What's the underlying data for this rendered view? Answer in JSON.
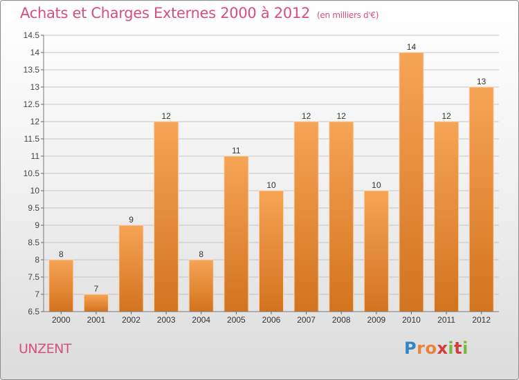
{
  "title": "Achats et Charges Externes 2000 à 2012",
  "unit": "(en milliers d'€)",
  "commune": "UNZENT",
  "logo": {
    "letters": [
      "P",
      "r",
      "o",
      "x",
      "i",
      "t",
      "i"
    ],
    "colors": [
      "#2e86c8",
      "#e8833a",
      "#e8833a",
      "#d63b3b",
      "#78b842",
      "#d63b3b",
      "#78b842"
    ]
  },
  "colors": {
    "bar_top": "#f6a456",
    "bar_bottom": "#d2731f",
    "grid": "#b5b5b5",
    "title": "#d84f7a"
  },
  "chart_data": {
    "type": "bar",
    "categories": [
      "2000",
      "2001",
      "2002",
      "2003",
      "2004",
      "2005",
      "2006",
      "2007",
      "2008",
      "2009",
      "2010",
      "2011",
      "2012"
    ],
    "values": [
      8,
      7,
      9,
      12,
      8,
      11,
      10,
      12,
      12,
      10,
      14,
      12,
      13
    ],
    "value_labels": [
      "8",
      "7",
      "9",
      "12",
      "8",
      "11",
      "10",
      "12",
      "12",
      "10",
      "14",
      "12",
      "13"
    ],
    "ylim": [
      6.5,
      14.5
    ],
    "yticks": [
      6.5,
      7,
      7.5,
      8,
      8.5,
      9,
      9.5,
      10,
      10.5,
      11,
      11.5,
      12,
      12.5,
      13,
      13.5,
      14,
      14.5
    ],
    "ytick_labels": [
      "6.5",
      "7",
      "7.5",
      "8",
      "8.5",
      "9",
      "9.5",
      "10",
      "10.5",
      "11",
      "11.5",
      "12",
      "12.5",
      "13",
      "13.5",
      "14",
      "14.5"
    ],
    "grid": true,
    "xlabel": "",
    "ylabel": ""
  }
}
